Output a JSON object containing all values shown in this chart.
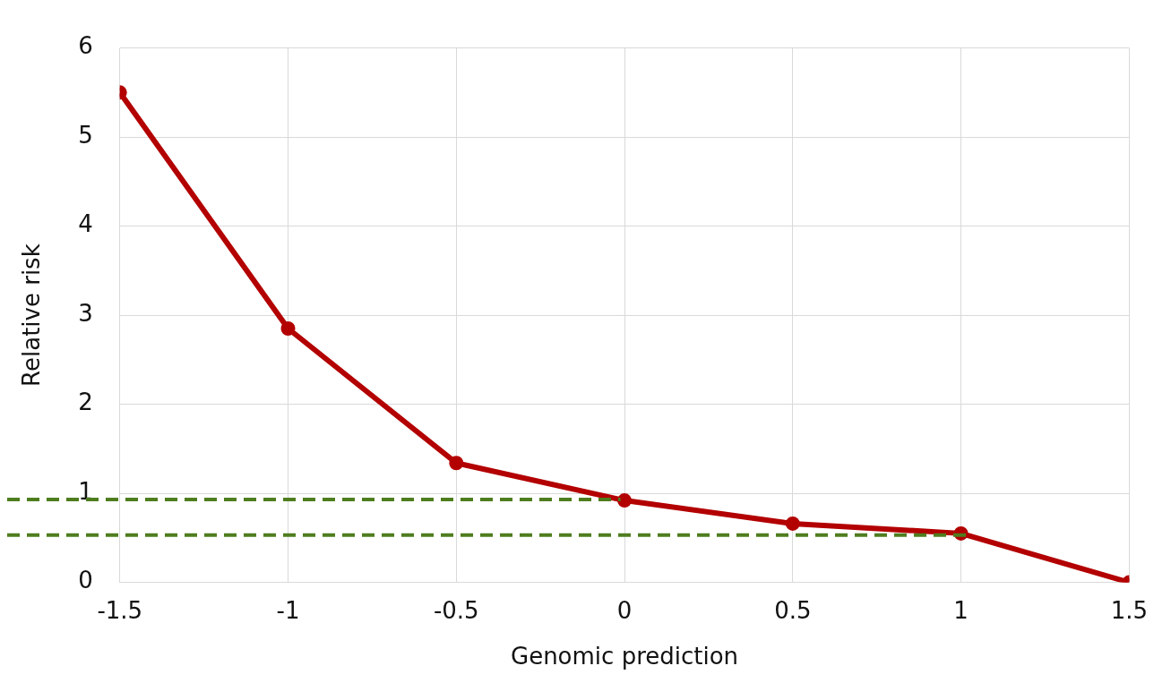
{
  "chart_data": {
    "type": "line",
    "xlabel": "Genomic prediction",
    "ylabel": "Relative risk",
    "x": [
      -1.5,
      -1,
      -0.5,
      0,
      0.5,
      1,
      1.5
    ],
    "series": [
      {
        "color": "#b30000",
        "values": [
          5.5,
          2.85,
          1.34,
          0.92,
          0.66,
          0.55,
          0
        ]
      }
    ],
    "xlim": [
      -1.5,
      1.5
    ],
    "xticks": [
      -1.5,
      -1,
      -0.5,
      0,
      0.5,
      1,
      1.5
    ],
    "ylim": [
      0,
      6
    ],
    "yticks": [
      0,
      1,
      2,
      3,
      4,
      5,
      6
    ],
    "ref_lines": [
      {
        "axis": "y",
        "value": 0.93,
        "color": "#4e7d1e",
        "line_style": "dashed"
      },
      {
        "axis": "y",
        "value": 0.53,
        "color": "#4e7d1e",
        "line_style": "dashed"
      }
    ],
    "grid": true,
    "legend": false,
    "marker": "circle",
    "line_style": "solid"
  }
}
